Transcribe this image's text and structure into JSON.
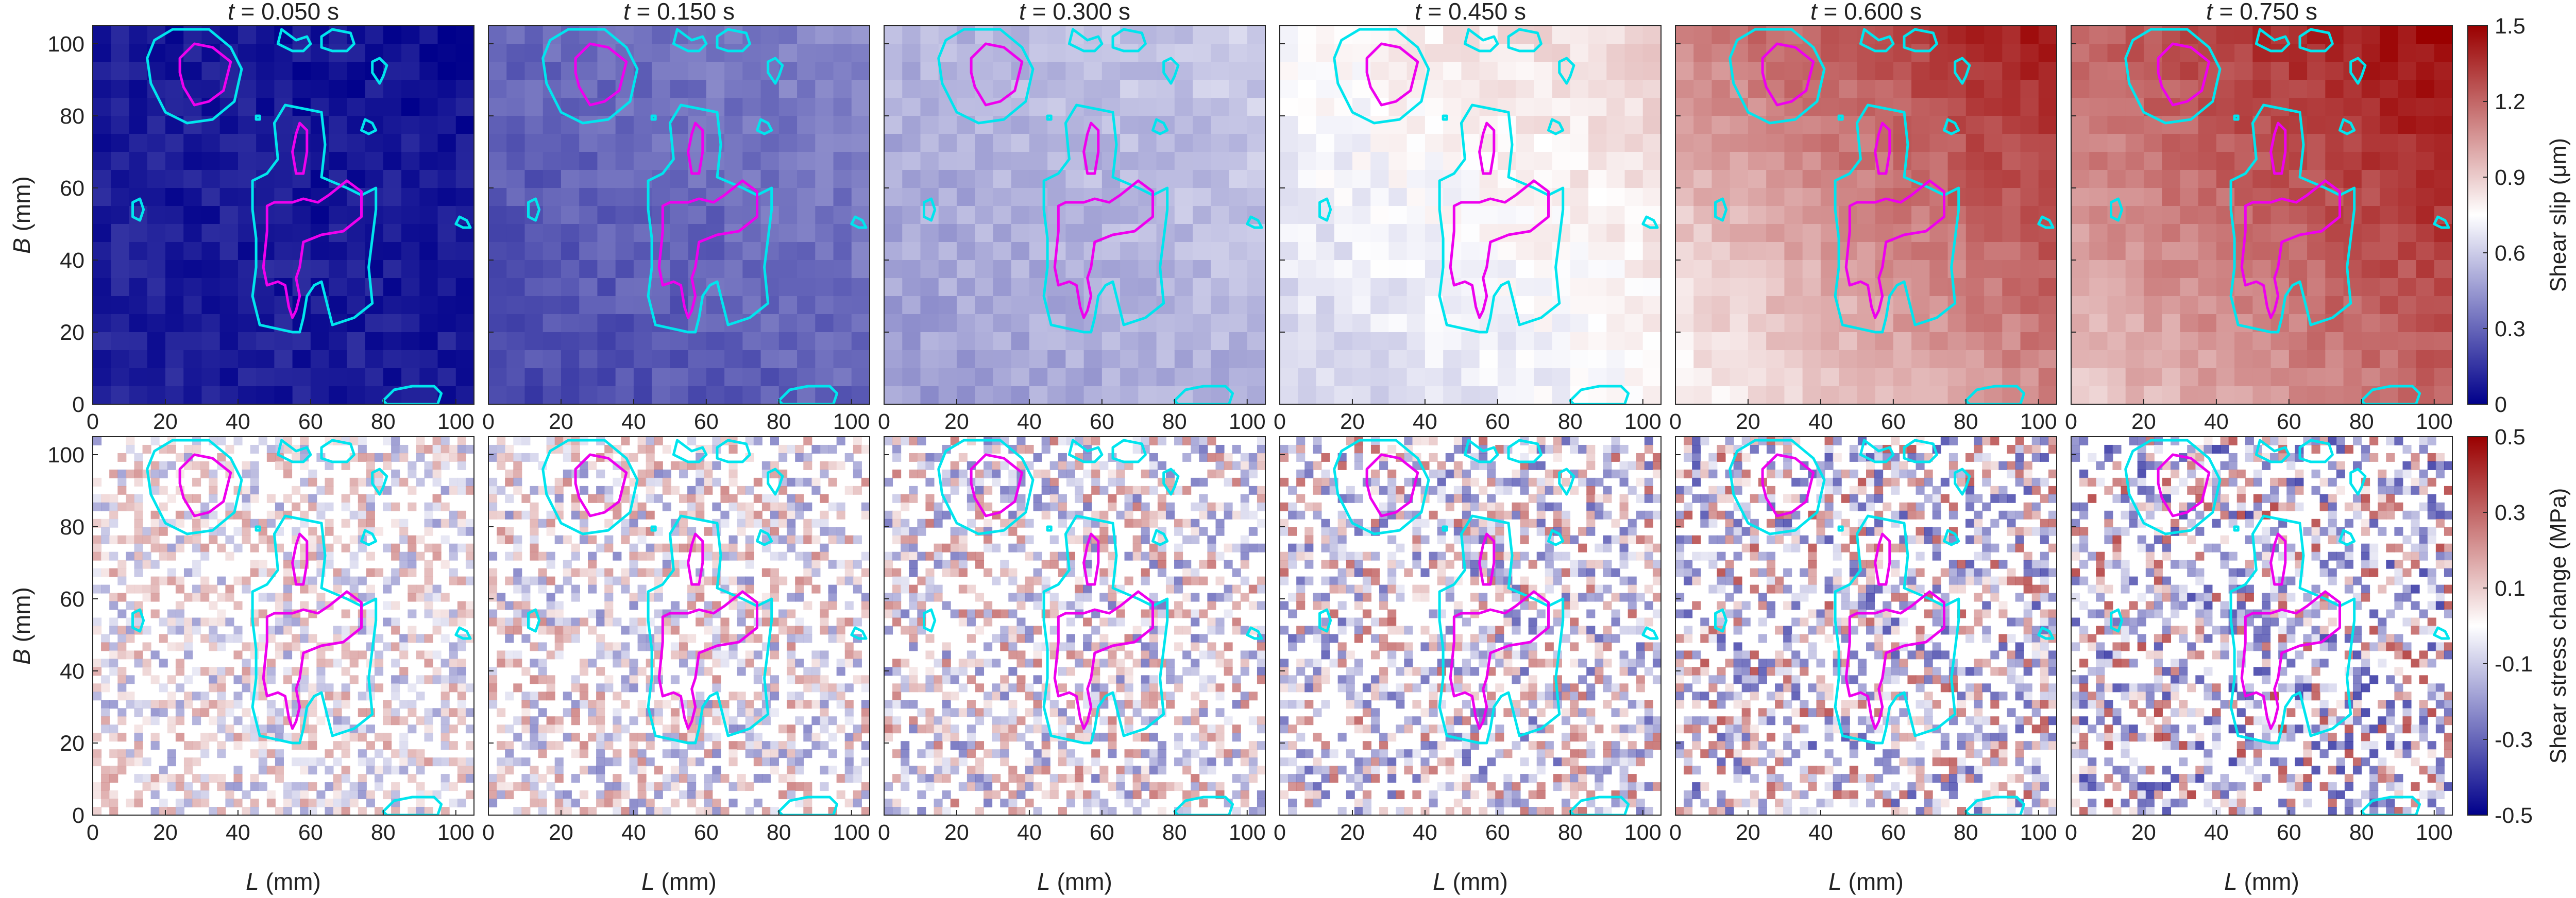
{
  "figure": {
    "rows": [
      {
        "id": "slip",
        "ylabel_var": "B",
        "ylabel_unit": " (mm)"
      },
      {
        "id": "stress",
        "ylabel_var": "B",
        "ylabel_unit": " (mm)"
      }
    ],
    "xlabel_var": "L",
    "xlabel_unit": " (mm)",
    "panel_titles": [
      {
        "var": "t",
        "rest": " = 0.050 s"
      },
      {
        "var": "t",
        "rest": " = 0.150 s"
      },
      {
        "var": "t",
        "rest": " = 0.300 s"
      },
      {
        "var": "t",
        "rest": " = 0.450 s"
      },
      {
        "var": "t",
        "rest": " = 0.600 s"
      },
      {
        "var": "t",
        "rest": " = 0.750 s"
      }
    ],
    "colorbars": [
      {
        "label": "Shear slip (μm)",
        "ticks": [
          "0",
          "0.3",
          "0.6",
          "0.9",
          "1.2",
          "1.5"
        ],
        "min": 0,
        "max": 1.5
      },
      {
        "label": "Shear stress change (MPa)",
        "ticks": [
          "-0.5",
          "-0.3",
          "-0.1",
          "0.1",
          "0.3",
          "0.5"
        ],
        "min": -0.5,
        "max": 0.5
      }
    ],
    "colors": {
      "low": "#00008b",
      "mid": "#ffffff",
      "high": "#9a0000",
      "contour_outer": "#00e5ee",
      "contour_inner": "#ee00ee"
    }
  },
  "chart_data": {
    "type": "heatmap",
    "xlim": [
      0,
      105
    ],
    "ylim": [
      0,
      105
    ],
    "x_ticks": [
      0,
      20,
      40,
      60,
      80,
      100
    ],
    "y_ticks": [
      0,
      20,
      40,
      60,
      80,
      100
    ],
    "times_s": [
      0.05,
      0.15,
      0.3,
      0.45,
      0.6,
      0.75
    ],
    "slip_fields": [
      {
        "time": "0.050 s",
        "mean_um": 0.08,
        "upper_right_um": 0.05,
        "lower_left_um": 0.1
      },
      {
        "time": "0.150 s",
        "mean_um": 0.12,
        "upper_right_um": 0.4,
        "lower_left_um": 0.2
      },
      {
        "time": "0.300 s",
        "mean_um": 0.3,
        "upper_right_um": 0.6,
        "lower_left_um": 0.45
      },
      {
        "time": "0.450 s",
        "mean_um": 0.55,
        "upper_right_um": 0.9,
        "lower_left_um": 0.6
      },
      {
        "time": "0.600 s",
        "mean_um": 0.95,
        "upper_right_um": 1.45,
        "lower_left_um": 0.75
      },
      {
        "time": "0.750 s",
        "mean_um": 1.3,
        "upper_right_um": 1.5,
        "lower_left_um": 0.9
      }
    ],
    "contours": {
      "outer": [
        [
          [
            17,
            101
          ],
          [
            22,
            104
          ],
          [
            32,
            104
          ],
          [
            38,
            99
          ],
          [
            41,
            93
          ],
          [
            39,
            84
          ],
          [
            33,
            79
          ],
          [
            26,
            78
          ],
          [
            20,
            81
          ],
          [
            16,
            89
          ],
          [
            15,
            96
          ]
        ],
        [
          [
            53,
            83
          ],
          [
            58,
            82
          ],
          [
            63,
            81
          ],
          [
            64,
            72
          ],
          [
            63,
            63
          ],
          [
            70,
            60
          ],
          [
            74,
            58
          ],
          [
            78,
            60
          ],
          [
            78,
            54
          ],
          [
            77,
            46
          ],
          [
            76,
            38
          ],
          [
            77,
            28
          ],
          [
            72,
            24
          ],
          [
            66,
            22
          ],
          [
            63,
            34
          ],
          [
            61,
            33
          ],
          [
            59,
            30
          ],
          [
            58,
            24
          ],
          [
            57,
            20
          ],
          [
            55,
            20
          ],
          [
            46,
            22
          ],
          [
            44,
            30
          ],
          [
            45,
            38
          ],
          [
            45,
            46
          ],
          [
            44,
            54
          ],
          [
            44,
            62
          ],
          [
            48,
            64
          ],
          [
            51,
            68
          ],
          [
            50,
            78
          ]
        ],
        [
          [
            52,
            104
          ],
          [
            56,
            101
          ],
          [
            59,
            102
          ],
          [
            60,
            100
          ],
          [
            58,
            98
          ],
          [
            55,
            98
          ],
          [
            53,
            99
          ],
          [
            51,
            100
          ]
        ],
        [
          [
            63,
            102
          ],
          [
            66,
            104
          ],
          [
            71,
            103
          ],
          [
            72,
            100
          ],
          [
            70,
            98
          ],
          [
            66,
            98
          ],
          [
            63,
            99
          ]
        ],
        [
          [
            77,
            95
          ],
          [
            79,
            96
          ],
          [
            81,
            94
          ],
          [
            80,
            91
          ],
          [
            79,
            89
          ],
          [
            77,
            92
          ]
        ],
        [
          [
            75,
            79
          ],
          [
            77,
            78
          ],
          [
            78,
            76
          ],
          [
            76,
            75
          ],
          [
            74,
            76
          ]
        ],
        [
          [
            11,
            56
          ],
          [
            13,
            57
          ],
          [
            14,
            54
          ],
          [
            13,
            51
          ],
          [
            11,
            52
          ]
        ],
        [
          [
            101,
            52
          ],
          [
            103,
            51
          ],
          [
            104,
            49
          ],
          [
            102,
            49
          ],
          [
            100,
            50
          ]
        ],
        [
          [
            45,
            80
          ],
          [
            46,
            80
          ],
          [
            46,
            79
          ],
          [
            45,
            79
          ]
        ],
        [
          [
            80,
            1
          ],
          [
            83,
            4
          ],
          [
            88,
            5
          ],
          [
            94,
            5
          ],
          [
            96,
            3
          ],
          [
            95,
            0
          ],
          [
            81,
            0
          ]
        ]
      ],
      "inner": [
        [
          [
            24,
            96
          ],
          [
            28,
            100
          ],
          [
            33,
            99
          ],
          [
            38,
            95
          ],
          [
            36,
            87
          ],
          [
            32,
            84
          ],
          [
            28,
            83
          ],
          [
            25,
            88
          ],
          [
            24,
            92
          ]
        ],
        [
          [
            56,
            75
          ],
          [
            57,
            78
          ],
          [
            59,
            76
          ],
          [
            59,
            70
          ],
          [
            58,
            64
          ],
          [
            56,
            64
          ],
          [
            55,
            70
          ]
        ],
        [
          [
            48,
            55
          ],
          [
            50,
            56
          ],
          [
            55,
            56
          ],
          [
            58,
            57
          ],
          [
            62,
            56
          ],
          [
            65,
            58
          ],
          [
            70,
            62
          ],
          [
            74,
            59
          ],
          [
            74,
            52
          ],
          [
            69,
            48
          ],
          [
            63,
            47
          ],
          [
            58,
            45
          ],
          [
            57,
            38
          ],
          [
            56,
            35
          ],
          [
            57,
            30
          ],
          [
            56,
            26
          ],
          [
            55,
            24
          ],
          [
            54,
            27
          ],
          [
            53,
            33
          ],
          [
            51,
            34
          ],
          [
            48,
            33
          ],
          [
            47,
            38
          ],
          [
            48,
            48
          ]
        ]
      ]
    }
  }
}
